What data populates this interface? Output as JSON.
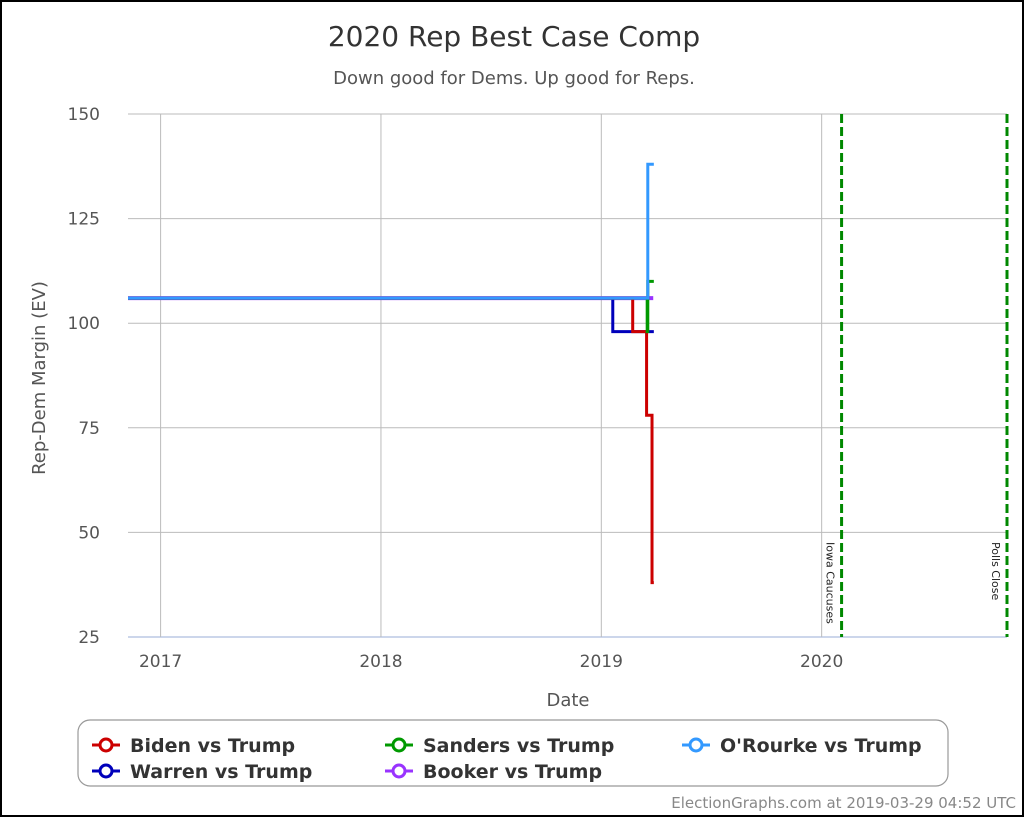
{
  "chart_data": {
    "type": "line",
    "title": "2020 Rep Best Case Comp",
    "subtitle": "Down good for Dems. Up good for Reps.",
    "xlabel": "Date",
    "ylabel": "Rep-Dem Margin (EV)",
    "xlim": [
      "2016-11-08",
      "2020-11-03"
    ],
    "ylim": [
      25,
      150
    ],
    "x_ticks": [
      "2017",
      "2018",
      "2019",
      "2020"
    ],
    "y_ticks": [
      25,
      50,
      75,
      100,
      125,
      150
    ],
    "grid": true,
    "step": true,
    "legend_placement": "bottom",
    "series": [
      {
        "name": "Biden vs Trump",
        "color": "#cc0000",
        "points": [
          [
            "2016-11-08",
            106
          ],
          [
            "2019-02-22",
            98
          ],
          [
            "2019-03-17",
            78
          ],
          [
            "2019-03-26",
            38
          ],
          [
            "2019-03-29",
            38
          ]
        ]
      },
      {
        "name": "Sanders vs Trump",
        "color": "#009900",
        "points": [
          [
            "2016-11-08",
            106
          ],
          [
            "2019-03-18",
            98
          ],
          [
            "2019-03-19",
            110
          ],
          [
            "2019-03-29",
            110
          ]
        ]
      },
      {
        "name": "O'Rourke vs Trump",
        "color": "#3399ff",
        "points": [
          [
            "2016-11-08",
            106
          ],
          [
            "2019-03-19",
            138
          ],
          [
            "2019-03-29",
            138
          ]
        ]
      },
      {
        "name": "Warren vs Trump",
        "color": "#0000bb",
        "points": [
          [
            "2016-11-08",
            106
          ],
          [
            "2019-01-20",
            98
          ],
          [
            "2019-03-29",
            98
          ]
        ]
      },
      {
        "name": "Booker vs Trump",
        "color": "#9933ff",
        "points": [
          [
            "2016-11-08",
            106
          ],
          [
            "2019-03-28",
            106
          ]
        ]
      }
    ],
    "annotations": [
      {
        "label": "Iowa Caucuses",
        "date": "2020-02-03",
        "color": "#008800",
        "style": "dashed"
      },
      {
        "label": "Polls Close",
        "date": "2020-11-03",
        "color": "#008800",
        "style": "dashed"
      }
    ]
  },
  "footer": "ElectionGraphs.com at 2019-03-29 04:52 UTC"
}
